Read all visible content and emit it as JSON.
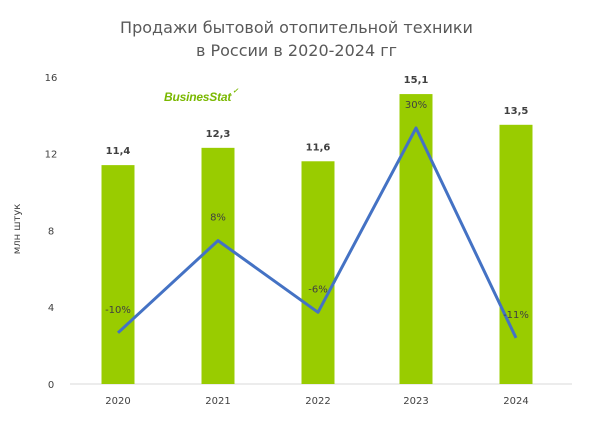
{
  "chart_data": {
    "type": "bar",
    "title_lines": [
      "Продажи бытовой отопительной техники",
      "в России в 2020-2024 гг"
    ],
    "ylabel": "млн  штук",
    "ylim": [
      0,
      16
    ],
    "yticks": [
      "0",
      "4",
      "8",
      "12",
      "16"
    ],
    "categories": [
      "2020",
      "2021",
      "2022",
      "2023",
      "2024"
    ],
    "series": [
      {
        "type": "bar",
        "values": [
          11.4,
          12.3,
          11.6,
          15.1,
          13.5
        ],
        "labels": [
          "11,4",
          "12,3",
          "11,6",
          "15,1",
          "13,5"
        ],
        "color": "#99cc00"
      },
      {
        "type": "line",
        "values": [
          -10,
          8,
          -6,
          30,
          -11
        ],
        "labels": [
          "-10%",
          "8%",
          "-6%",
          "30%",
          "-11%"
        ],
        "color": "#4472c4"
      }
    ],
    "grid": false,
    "legend": "none"
  },
  "branding": {
    "logo_text": "BusinesStat"
  }
}
